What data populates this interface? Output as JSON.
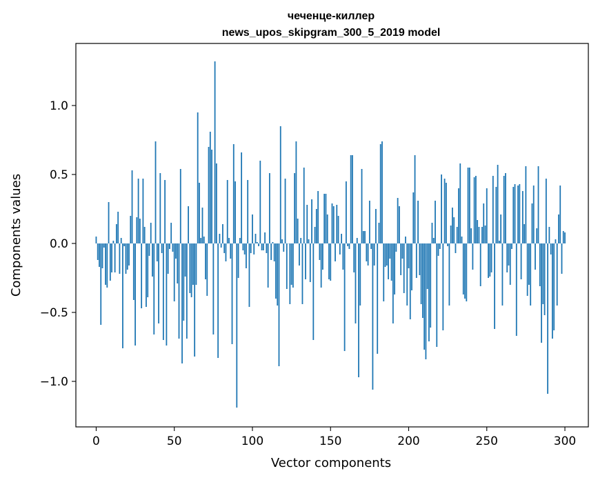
{
  "chart_data": {
    "type": "bar",
    "title": [
      "чеченце-киллер",
      "news_upos_skipgram_300_5_2019 model"
    ],
    "xlabel": "Vector components",
    "ylabel": "Components values",
    "xlim": [
      -13,
      315
    ],
    "ylim": [
      -1.33,
      1.45
    ],
    "x_ticks": [
      0,
      50,
      100,
      150,
      200,
      250,
      300
    ],
    "x_tick_labels": [
      "0",
      "50",
      "100",
      "150",
      "200",
      "250",
      "300"
    ],
    "y_ticks": [
      -1.0,
      -0.5,
      0.0,
      0.5,
      1.0
    ],
    "y_tick_labels": [
      "−1.0",
      "−0.5",
      "0.0",
      "0.5",
      "1.0"
    ],
    "bar_color": "#1f77b4",
    "values": [
      0.05,
      -0.12,
      -0.17,
      -0.59,
      -0.18,
      -0.03,
      -0.3,
      -0.32,
      0.3,
      -0.27,
      -0.21,
      0.02,
      -0.21,
      0.14,
      0.23,
      -0.22,
      0.04,
      -0.76,
      -0.02,
      -0.22,
      -0.19,
      -0.16,
      0.2,
      0.53,
      -0.41,
      -0.74,
      0.19,
      0.47,
      0.18,
      -0.47,
      0.47,
      0.12,
      -0.46,
      -0.39,
      -0.09,
      0.15,
      -0.24,
      -0.66,
      0.74,
      -0.13,
      -0.58,
      0.51,
      -0.07,
      -0.7,
      0.46,
      -0.74,
      -0.22,
      -0.04,
      0.15,
      -0.06,
      -0.42,
      -0.11,
      -0.29,
      -0.69,
      0.54,
      -0.87,
      -0.56,
      -0.24,
      -0.69,
      0.27,
      -0.36,
      -0.39,
      -0.3,
      -0.82,
      -0.3,
      0.95,
      0.44,
      0.04,
      0.26,
      0.05,
      -0.26,
      -0.38,
      0.7,
      0.81,
      0.68,
      -0.66,
      1.32,
      0.58,
      -0.83,
      0.07,
      -0.03,
      0.14,
      -0.07,
      -0.13,
      0.46,
      0.04,
      -0.11,
      -0.73,
      0.72,
      0.45,
      -1.19,
      -0.25,
      0.04,
      0.66,
      -0.05,
      -0.08,
      -0.18,
      0.46,
      -0.46,
      -0.07,
      0.21,
      -0.08,
      0.07,
      0.01,
      -0.02,
      0.6,
      -0.05,
      -0.05,
      0.08,
      -0.07,
      -0.32,
      0.51,
      -0.12,
      0.01,
      -0.13,
      -0.4,
      -0.45,
      -0.89,
      0.85,
      0.03,
      -0.06,
      0.47,
      -0.33,
      0.0,
      -0.44,
      -0.3,
      -0.32,
      0.51,
      0.74,
      0.18,
      -0.16,
      0.04,
      -0.44,
      0.55,
      -0.26,
      0.28,
      0.03,
      -0.28,
      0.32,
      -0.7,
      0.12,
      0.25,
      0.38,
      -0.12,
      -0.32,
      -0.19,
      0.36,
      0.36,
      0.21,
      -0.26,
      -0.27,
      0.29,
      0.27,
      -0.13,
      0.28,
      0.2,
      -0.08,
      0.07,
      -0.19,
      -0.78,
      0.45,
      -0.02,
      -0.04,
      0.64,
      0.64,
      -0.21,
      -0.58,
      0.04,
      -0.97,
      -0.45,
      0.54,
      0.09,
      0.09,
      -0.13,
      -0.16,
      0.31,
      -0.04,
      -1.06,
      -0.16,
      0.25,
      -0.8,
      0.15,
      0.72,
      0.74,
      -0.42,
      -0.17,
      -0.16,
      -0.26,
      -0.11,
      -0.27,
      -0.58,
      -0.37,
      -0.06,
      0.33,
      0.27,
      -0.23,
      -0.11,
      -0.36,
      0.05,
      -0.45,
      -0.18,
      -0.55,
      -0.34,
      0.37,
      0.64,
      -0.25,
      0.31,
      -0.23,
      -0.44,
      -0.54,
      -0.77,
      -0.84,
      -0.33,
      -0.71,
      -0.61,
      0.15,
      0.04,
      0.31,
      -0.75,
      -0.09,
      -0.04,
      0.5,
      -0.63,
      0.47,
      0.44,
      -0.02,
      -0.45,
      0.13,
      0.26,
      0.19,
      -0.07,
      0.12,
      0.4,
      0.58,
      0.05,
      -0.37,
      -0.4,
      -0.42,
      0.55,
      0.55,
      0.11,
      -0.19,
      0.48,
      0.49,
      0.17,
      0.12,
      -0.31,
      0.12,
      0.29,
      0.13,
      0.4,
      -0.25,
      -0.24,
      -0.21,
      0.49,
      -0.62,
      0.41,
      0.57,
      0.02,
      0.21,
      -0.45,
      0.49,
      0.51,
      -0.21,
      -0.16,
      -0.3,
      -0.04,
      0.41,
      0.43,
      -0.67,
      0.42,
      0.43,
      -0.26,
      0.38,
      0.14,
      0.56,
      -0.38,
      -0.3,
      -0.45,
      0.29,
      0.42,
      -0.19,
      0.11,
      0.56,
      -0.31,
      -0.72,
      -0.44,
      -0.52,
      0.47,
      -1.09,
      0.12,
      -0.08,
      -0.69,
      -0.63,
      0.03,
      -0.45,
      0.21,
      0.42,
      -0.22,
      0.09,
      0.08
    ]
  }
}
